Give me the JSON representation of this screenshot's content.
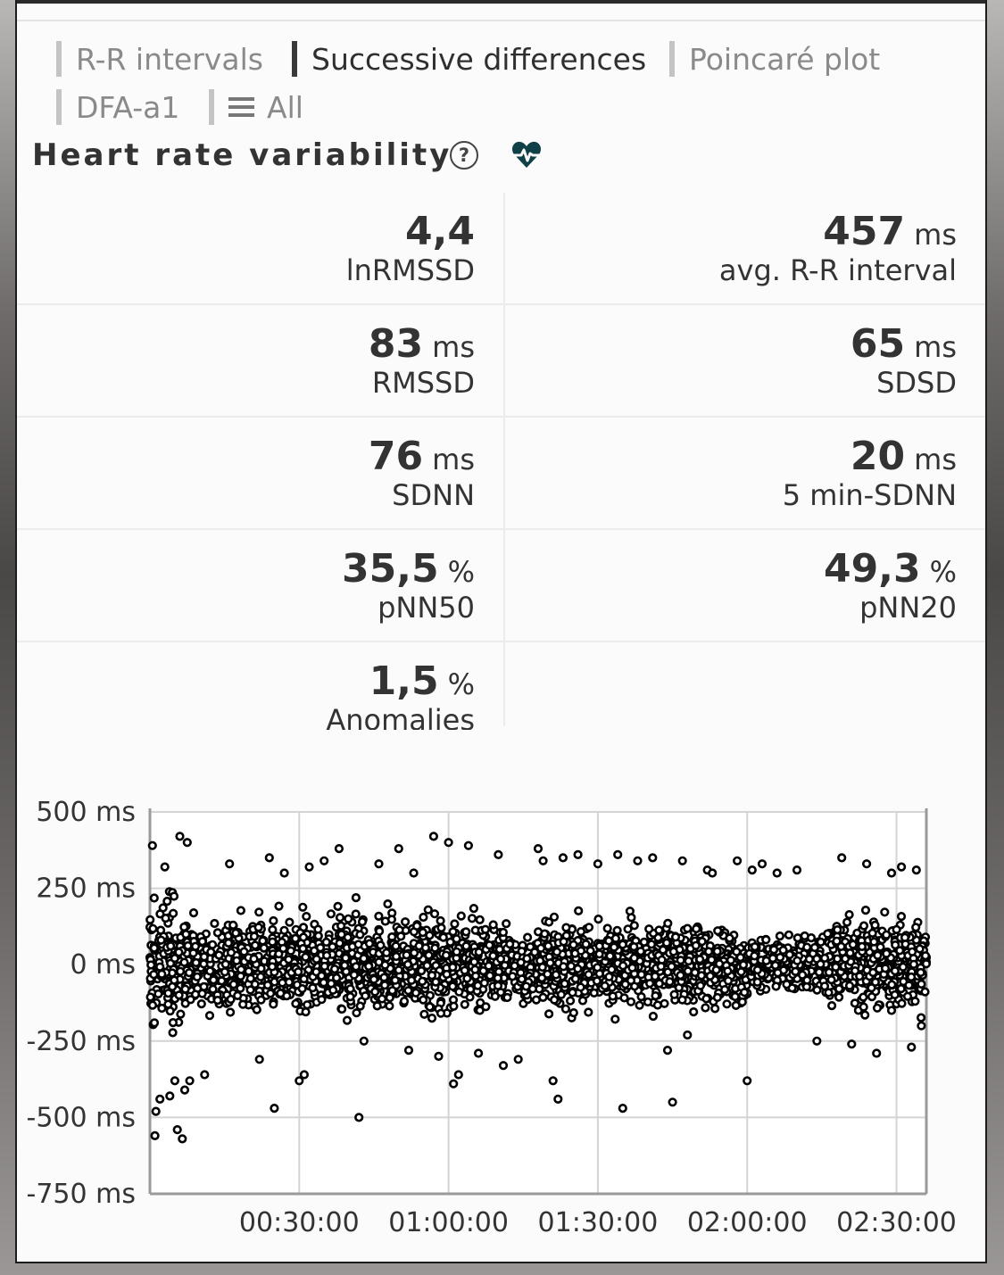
{
  "tabs": [
    {
      "label": "R-R intervals",
      "active": false
    },
    {
      "label": "Successive differences",
      "active": true
    },
    {
      "label": "Poincaré plot",
      "active": false
    },
    {
      "label": "DFA-a1",
      "active": false
    },
    {
      "label": "All",
      "active": false,
      "icon": "menu-icon"
    }
  ],
  "header": {
    "title": "Heart rate variability",
    "help_icon": "question-circle-icon",
    "heart_icon": "heart-pulse-icon"
  },
  "colors": {
    "accent": "#0f3f47",
    "points": "#000000"
  },
  "metrics": [
    {
      "value": "4,4",
      "unit": "",
      "label": "lnRMSSD"
    },
    {
      "value": "457",
      "unit": "ms",
      "label": "avg. R-R interval"
    },
    {
      "value": "83",
      "unit": "ms",
      "label": "RMSSD"
    },
    {
      "value": "65",
      "unit": "ms",
      "label": "SDSD"
    },
    {
      "value": "76",
      "unit": "ms",
      "label": "SDNN"
    },
    {
      "value": "20",
      "unit": "ms",
      "label": "5 min-SDNN"
    },
    {
      "value": "35,5",
      "unit": "%",
      "label": "pNN50"
    },
    {
      "value": "49,3",
      "unit": "%",
      "label": "pNN20"
    },
    {
      "value": "1,5",
      "unit": "%",
      "label": "Anomalies"
    }
  ],
  "chart_data": {
    "type": "scatter",
    "yticks": [
      "500 ms",
      "250 ms",
      "0 ms",
      "-250 ms",
      "-500 ms",
      "-750 ms"
    ],
    "ylim": [
      -750,
      500
    ],
    "xticks": [
      "00:30:00",
      "01:00:00",
      "01:30:00",
      "02:00:00",
      "02:30:00"
    ],
    "xlim_minutes": [
      0,
      156
    ],
    "grid": true,
    "series": [
      {
        "points": [
          [
            0.5,
            390
          ],
          [
            1,
            -560
          ],
          [
            1.2,
            -480
          ],
          [
            2,
            -440
          ],
          [
            3,
            320
          ],
          [
            4,
            -430
          ],
          [
            5,
            -380
          ],
          [
            6,
            420
          ],
          [
            6.5,
            -570
          ],
          [
            7,
            -410
          ],
          [
            8,
            -380
          ],
          [
            5.5,
            -540
          ],
          [
            7.5,
            400
          ],
          [
            11,
            -360
          ],
          [
            16,
            330
          ],
          [
            22,
            -310
          ],
          [
            24,
            350
          ],
          [
            25,
            -470
          ],
          [
            27,
            300
          ],
          [
            30,
            -380
          ],
          [
            31,
            -360
          ],
          [
            32,
            320
          ],
          [
            35,
            340
          ],
          [
            38,
            380
          ],
          [
            42,
            -500
          ],
          [
            43,
            -250
          ],
          [
            46,
            330
          ],
          [
            50,
            380
          ],
          [
            52,
            -280
          ],
          [
            53,
            300
          ],
          [
            57,
            420
          ],
          [
            58,
            -300
          ],
          [
            60,
            400
          ],
          [
            61,
            -390
          ],
          [
            62,
            -360
          ],
          [
            64,
            390
          ],
          [
            66,
            -290
          ],
          [
            70,
            360
          ],
          [
            71,
            -330
          ],
          [
            74,
            -310
          ],
          [
            78,
            380
          ],
          [
            79,
            340
          ],
          [
            81,
            -380
          ],
          [
            82,
            -440
          ],
          [
            83,
            350
          ],
          [
            86,
            360
          ],
          [
            90,
            330
          ],
          [
            94,
            360
          ],
          [
            95,
            -470
          ],
          [
            98,
            340
          ],
          [
            101,
            350
          ],
          [
            104,
            -280
          ],
          [
            105,
            -450
          ],
          [
            107,
            340
          ],
          [
            108,
            -230
          ],
          [
            112,
            310
          ],
          [
            113,
            300
          ],
          [
            118,
            340
          ],
          [
            120,
            -380
          ],
          [
            121,
            310
          ],
          [
            123,
            330
          ],
          [
            126,
            300
          ],
          [
            130,
            310
          ],
          [
            134,
            -250
          ],
          [
            139,
            350
          ],
          [
            141,
            -260
          ],
          [
            144,
            330
          ],
          [
            146,
            -290
          ],
          [
            149,
            300
          ],
          [
            151,
            320
          ],
          [
            153,
            -270
          ],
          [
            154,
            310
          ],
          [
            155,
            -200
          ]
        ]
      }
    ]
  }
}
